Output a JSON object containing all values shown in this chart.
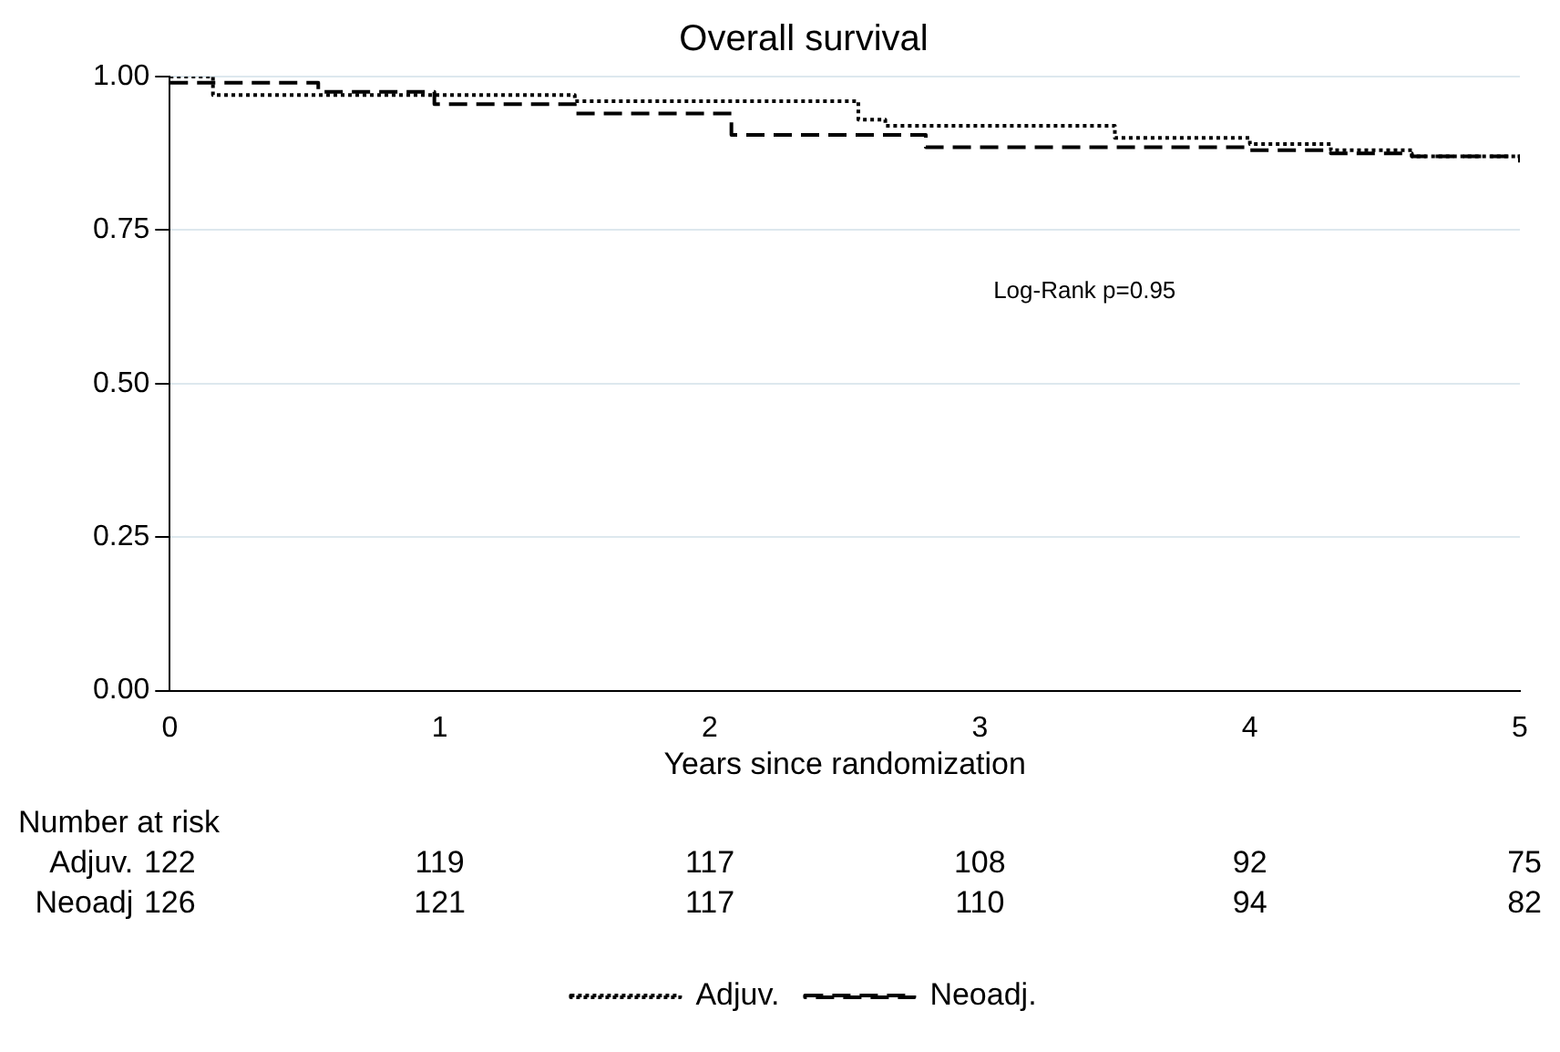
{
  "chart_data": {
    "type": "step",
    "title": "Overall survival",
    "xlabel": "Years since randomization",
    "xlim": [
      0,
      5
    ],
    "xticks": [
      0,
      1,
      2,
      3,
      4,
      5
    ],
    "ylim": [
      0,
      1
    ],
    "yticks": [
      {
        "value": 0,
        "label": "0.00"
      },
      {
        "value": 0.25,
        "label": "0.25"
      },
      {
        "value": 0.5,
        "label": "0.50"
      },
      {
        "value": 0.75,
        "label": "0.75"
      },
      {
        "value": 1,
        "label": "1.00"
      }
    ],
    "grid": "y",
    "legend": "bottom",
    "marker": "none",
    "series": [
      {
        "name": "Adjuv.",
        "color": "#000000",
        "line_style": "dotted",
        "x": [
          0,
          0.16,
          1.5,
          2.55,
          2.65,
          3.5,
          4.0,
          4.3,
          4.6,
          5
        ],
        "values": [
          1.0,
          0.97,
          0.96,
          0.93,
          0.92,
          0.9,
          0.89,
          0.88,
          0.87,
          0.86
        ]
      },
      {
        "name": "Neoadj.",
        "color": "#000000",
        "line_style": "dashed",
        "x": [
          0,
          0.55,
          0.98,
          1.5,
          2.08,
          2.8,
          4.0,
          4.3,
          4.6,
          5
        ],
        "values": [
          0.99,
          0.975,
          0.955,
          0.94,
          0.905,
          0.885,
          0.88,
          0.875,
          0.87,
          0.86
        ]
      }
    ],
    "annotations": [
      "Log-Rank p=0.95",
      "Number at risk",
      "Adjuv. 122 119 117 108 92 75",
      "Neoadj 126 121 117 110 94 82"
    ]
  }
}
